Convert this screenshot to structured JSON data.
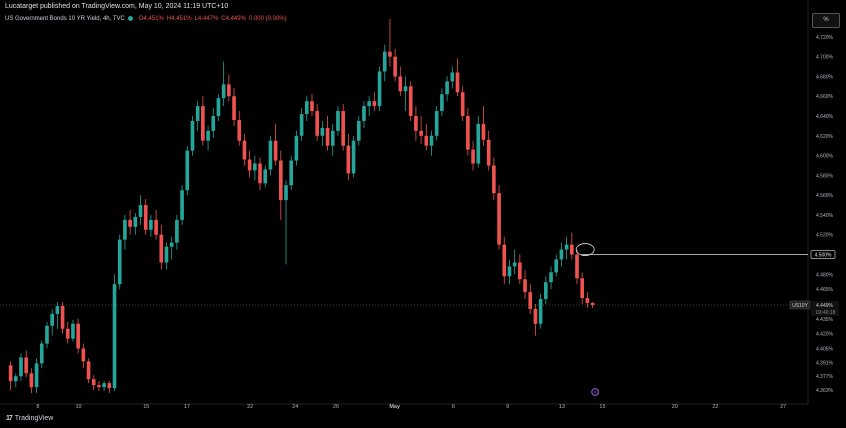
{
  "publisher_line": "Lucatarget published on TradingView.com, May 10, 2024 11:19 UTC+10",
  "legend": {
    "title": "US Government Bonds 10 YR Yield, 4h, TVC",
    "open": "O4.451%",
    "high": "H4.451%",
    "low": "L4.447%",
    "close": "C4.449%",
    "change": "0.000 (0.00%)"
  },
  "scale_button": "%",
  "brand": "TradingView",
  "colors": {
    "up": "#26a69a",
    "down": "#ef5350",
    "background": "#000000",
    "text": "#d1d4dc"
  },
  "chart_data": {
    "type": "candlestick",
    "y_unit": "%",
    "ylim": [
      4.355,
      4.735
    ],
    "y_ticks": [
      "4.720%",
      "4.700%",
      "4.680%",
      "4.660%",
      "4.640%",
      "4.620%",
      "4.600%",
      "4.580%",
      "4.560%",
      "4.540%",
      "4.520%",
      "4.500%",
      "4.480%",
      "4.465%",
      "4.450%",
      "4.435%",
      "4.420%",
      "4.405%",
      "4.391%",
      "4.377%",
      "4.363%"
    ],
    "x_tick_labels": [
      "8",
      "10",
      "15",
      "17",
      "22",
      "24",
      "26",
      "May",
      "6",
      "9",
      "13",
      "15",
      "20",
      "22",
      "27"
    ],
    "x_tick_index": [
      7,
      16,
      31,
      40,
      54,
      64,
      73,
      86,
      99,
      111,
      123,
      132,
      148,
      157,
      172
    ],
    "x_count": 178,
    "candles_ohlc": [
      [
        4.388,
        4.392,
        4.363,
        4.372
      ],
      [
        4.372,
        4.38,
        4.366,
        4.377
      ],
      [
        4.377,
        4.4,
        4.372,
        4.396
      ],
      [
        4.396,
        4.403,
        4.376,
        4.38
      ],
      [
        4.38,
        4.385,
        4.36,
        4.366
      ],
      [
        4.366,
        4.395,
        4.36,
        4.39
      ],
      [
        4.39,
        4.413,
        4.385,
        4.41
      ],
      [
        4.41,
        4.432,
        4.405,
        4.428
      ],
      [
        4.428,
        4.445,
        4.418,
        4.44
      ],
      [
        4.44,
        4.452,
        4.425,
        4.448
      ],
      [
        4.448,
        4.452,
        4.42,
        4.425
      ],
      [
        4.425,
        4.432,
        4.41,
        4.415
      ],
      [
        4.415,
        4.434,
        4.412,
        4.43
      ],
      [
        4.43,
        4.435,
        4.4,
        4.405
      ],
      [
        4.405,
        4.41,
        4.385,
        4.392
      ],
      [
        4.392,
        4.395,
        4.37,
        4.374
      ],
      [
        4.374,
        4.378,
        4.363,
        4.368
      ],
      [
        4.368,
        4.372,
        4.362,
        4.366
      ],
      [
        4.366,
        4.372,
        4.362,
        4.37
      ],
      [
        4.37,
        4.372,
        4.36,
        4.365
      ],
      [
        4.365,
        4.48,
        4.362,
        4.47
      ],
      [
        4.47,
        4.52,
        4.465,
        4.515
      ],
      [
        4.515,
        4.54,
        4.505,
        4.535
      ],
      [
        4.535,
        4.545,
        4.52,
        4.528
      ],
      [
        4.528,
        4.542,
        4.52,
        4.538
      ],
      [
        4.538,
        4.56,
        4.53,
        4.55
      ],
      [
        4.55,
        4.556,
        4.52,
        4.525
      ],
      [
        4.525,
        4.54,
        4.518,
        4.535
      ],
      [
        4.535,
        4.545,
        4.515,
        4.52
      ],
      [
        4.52,
        4.53,
        4.485,
        4.492
      ],
      [
        4.492,
        4.512,
        4.485,
        4.508
      ],
      [
        4.508,
        4.518,
        4.495,
        4.512
      ],
      [
        4.512,
        4.54,
        4.505,
        4.535
      ],
      [
        4.535,
        4.57,
        4.53,
        4.565
      ],
      [
        4.565,
        4.61,
        4.56,
        4.605
      ],
      [
        4.605,
        4.64,
        4.6,
        4.635
      ],
      [
        4.635,
        4.655,
        4.625,
        4.65
      ],
      [
        4.65,
        4.66,
        4.61,
        4.615
      ],
      [
        4.615,
        4.63,
        4.605,
        4.625
      ],
      [
        4.625,
        4.648,
        4.618,
        4.64
      ],
      [
        4.64,
        4.662,
        4.635,
        4.658
      ],
      [
        4.658,
        4.695,
        4.65,
        4.672
      ],
      [
        4.672,
        4.682,
        4.655,
        4.66
      ],
      [
        4.66,
        4.668,
        4.63,
        4.636
      ],
      [
        4.636,
        4.645,
        4.61,
        4.615
      ],
      [
        4.615,
        4.622,
        4.59,
        4.596
      ],
      [
        4.596,
        4.605,
        4.578,
        4.585
      ],
      [
        4.585,
        4.6,
        4.575,
        4.592
      ],
      [
        4.592,
        4.598,
        4.565,
        4.572
      ],
      [
        4.572,
        4.59,
        4.568,
        4.586
      ],
      [
        4.586,
        4.62,
        4.58,
        4.615
      ],
      [
        4.615,
        4.632,
        4.59,
        4.595
      ],
      [
        4.595,
        4.605,
        4.535,
        4.555
      ],
      [
        4.555,
        4.575,
        4.49,
        4.57
      ],
      [
        4.57,
        4.6,
        4.565,
        4.595
      ],
      [
        4.595,
        4.625,
        4.59,
        4.62
      ],
      [
        4.62,
        4.648,
        4.615,
        4.642
      ],
      [
        4.642,
        4.66,
        4.635,
        4.655
      ],
      [
        4.655,
        4.662,
        4.64,
        4.645
      ],
      [
        4.645,
        4.652,
        4.615,
        4.62
      ],
      [
        4.62,
        4.635,
        4.61,
        4.628
      ],
      [
        4.628,
        4.64,
        4.605,
        4.61
      ],
      [
        4.61,
        4.632,
        4.6,
        4.625
      ],
      [
        4.625,
        4.65,
        4.62,
        4.645
      ],
      [
        4.645,
        4.652,
        4.605,
        4.61
      ],
      [
        4.61,
        4.622,
        4.575,
        4.582
      ],
      [
        4.582,
        4.62,
        4.578,
        4.615
      ],
      [
        4.615,
        4.64,
        4.61,
        4.635
      ],
      [
        4.635,
        4.655,
        4.628,
        4.65
      ],
      [
        4.65,
        4.66,
        4.64,
        4.655
      ],
      [
        4.655,
        4.664,
        4.645,
        4.65
      ],
      [
        4.65,
        4.69,
        4.645,
        4.685
      ],
      [
        4.685,
        4.712,
        4.675,
        4.705
      ],
      [
        4.705,
        4.738,
        4.69,
        4.7
      ],
      [
        4.7,
        4.708,
        4.675,
        4.68
      ],
      [
        4.68,
        4.69,
        4.66,
        4.665
      ],
      [
        4.665,
        4.68,
        4.645,
        4.67
      ],
      [
        4.67,
        4.675,
        4.635,
        4.64
      ],
      [
        4.64,
        4.65,
        4.615,
        4.625
      ],
      [
        4.625,
        4.64,
        4.612,
        4.62
      ],
      [
        4.62,
        4.632,
        4.605,
        4.61
      ],
      [
        4.61,
        4.625,
        4.6,
        4.62
      ],
      [
        4.62,
        4.65,
        4.615,
        4.645
      ],
      [
        4.645,
        4.668,
        4.64,
        4.662
      ],
      [
        4.662,
        4.68,
        4.655,
        4.675
      ],
      [
        4.675,
        4.69,
        4.668,
        4.684
      ],
      [
        4.684,
        4.698,
        4.66,
        4.664
      ],
      [
        4.664,
        4.67,
        4.635,
        4.64
      ],
      [
        4.64,
        4.648,
        4.6,
        4.606
      ],
      [
        4.606,
        4.615,
        4.585,
        4.592
      ],
      [
        4.592,
        4.64,
        4.588,
        4.632
      ],
      [
        4.632,
        4.65,
        4.61,
        4.616
      ],
      [
        4.616,
        4.625,
        4.585,
        4.59
      ],
      [
        4.59,
        4.598,
        4.555,
        4.562
      ],
      [
        4.562,
        4.57,
        4.505,
        4.51
      ],
      [
        4.51,
        4.518,
        4.47,
        4.478
      ],
      [
        4.478,
        4.495,
        4.47,
        4.488
      ],
      [
        4.488,
        4.505,
        4.48,
        4.492
      ],
      [
        4.492,
        4.5,
        4.47,
        4.475
      ],
      [
        4.475,
        4.484,
        4.455,
        4.462
      ],
      [
        4.462,
        4.47,
        4.44,
        4.445
      ],
      [
        4.445,
        4.45,
        4.418,
        4.43
      ],
      [
        4.43,
        4.46,
        4.425,
        4.455
      ],
      [
        4.455,
        4.478,
        4.45,
        4.472
      ],
      [
        4.472,
        4.488,
        4.465,
        4.482
      ],
      [
        4.482,
        4.5,
        4.478,
        4.495
      ],
      [
        4.495,
        4.512,
        4.488,
        4.505
      ],
      [
        4.505,
        4.518,
        4.495,
        4.51
      ],
      [
        4.51,
        4.522,
        4.495,
        4.5
      ],
      [
        4.5,
        4.505,
        4.47,
        4.476
      ],
      [
        4.476,
        4.482,
        4.45,
        4.456
      ],
      [
        4.456,
        4.462,
        4.446,
        4.451
      ],
      [
        4.451,
        4.452,
        4.446,
        4.449
      ]
    ],
    "candle_start_index": 0,
    "candle_index_gaps": [
      0,
      5,
      10,
      16,
      21,
      26,
      31,
      36,
      41,
      46,
      51,
      56,
      61,
      66,
      71,
      76,
      81,
      86,
      91,
      96,
      101,
      106,
      111,
      116
    ],
    "horizontal_lines": [
      {
        "price": 4.5,
        "label": "4.500%",
        "style": "solid",
        "color": "#e0e0e0"
      },
      {
        "price": 4.449,
        "label": "4.449%",
        "style": "dotted",
        "color": "#888888"
      }
    ],
    "symbol_tag": "US10Y",
    "countdown": "03:40:18",
    "annotations": [
      {
        "type": "ellipse",
        "price": 4.505
      }
    ],
    "marker": {
      "type": "event-icon"
    }
  }
}
